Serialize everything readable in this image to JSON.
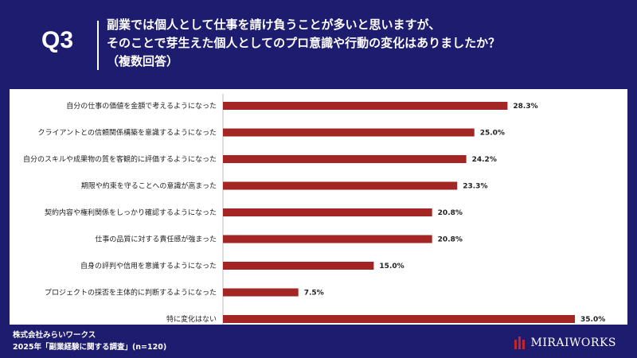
{
  "header": {
    "q_label": "Q3",
    "question_lines": [
      "副業では個人として仕事を請け負うことが多いと思いますが、",
      "そのことで芽生えた個人としてのプロ意識や行動の変化はありましたか？",
      "（複数回答）"
    ]
  },
  "chart_data": {
    "type": "bar",
    "orientation": "horizontal",
    "categories": [
      "自分の仕事の価値を金額で考えるようになった",
      "クライアントとの信頼関係構築を意識するようになった",
      "自分のスキルや成果物の質を客観的に評価するようになった",
      "期限や約束を守ることへの意識が高まった",
      "契約内容や権利関係をしっかり確認するようになった",
      "仕事の品質に対する責任感が強まった",
      "自身の評判や信用を意識するようになった",
      "プロジェクトの採否を主体的に判断するようになった",
      "特に変化はない"
    ],
    "values": [
      28.3,
      25.0,
      24.2,
      23.3,
      20.8,
      20.8,
      15.0,
      7.5,
      35.0
    ],
    "value_labels": [
      "28.3%",
      "25.0%",
      "24.2%",
      "23.3%",
      "20.8%",
      "20.8%",
      "15.0%",
      "7.5%",
      "35.0%"
    ],
    "xlim": [
      0,
      35
    ],
    "bar_color": "#a32624",
    "grid": false
  },
  "footer": {
    "line1": "株式会社みらいワークス",
    "line2": "2025年「副業経験に関する調査」(n=120)"
  },
  "logo": {
    "text": "MIRAIWORKS",
    "icon": "mirai-works-logo-icon"
  },
  "colors": {
    "background": "#1d1c6e",
    "panel": "#ffffff",
    "bar": "#a32624"
  }
}
